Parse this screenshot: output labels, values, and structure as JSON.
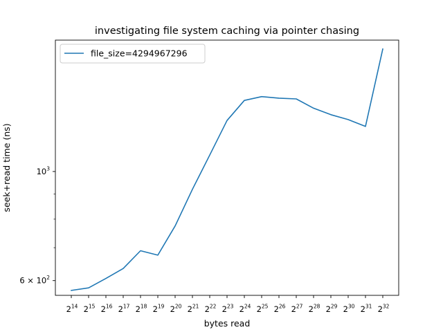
{
  "chart_data": {
    "type": "line",
    "title": "investigating file system caching via pointer chasing",
    "xlabel": "bytes read",
    "ylabel": "seek+read time (ns)",
    "x_scale": "log2",
    "y_scale": "log10",
    "x_ticks": [
      {
        "base": "2",
        "exp": "14"
      },
      {
        "base": "2",
        "exp": "15"
      },
      {
        "base": "2",
        "exp": "16"
      },
      {
        "base": "2",
        "exp": "17"
      },
      {
        "base": "2",
        "exp": "18"
      },
      {
        "base": "2",
        "exp": "19"
      },
      {
        "base": "2",
        "exp": "20"
      },
      {
        "base": "2",
        "exp": "21"
      },
      {
        "base": "2",
        "exp": "22"
      },
      {
        "base": "2",
        "exp": "23"
      },
      {
        "base": "2",
        "exp": "24"
      },
      {
        "base": "2",
        "exp": "25"
      },
      {
        "base": "2",
        "exp": "26"
      },
      {
        "base": "2",
        "exp": "27"
      },
      {
        "base": "2",
        "exp": "28"
      },
      {
        "base": "2",
        "exp": "29"
      },
      {
        "base": "2",
        "exp": "30"
      },
      {
        "base": "2",
        "exp": "31"
      },
      {
        "base": "2",
        "exp": "32"
      }
    ],
    "y_tick_labels": [
      {
        "value": 1000,
        "mantissa": "",
        "base": "10",
        "exp": "3"
      },
      {
        "value": 600,
        "mantissa": "6 × ",
        "base": "10",
        "exp": "2"
      }
    ],
    "y_minor_ticks": [
      700,
      800,
      900
    ],
    "xlim": [
      16384,
      4294967296
    ],
    "ylim": [
      560,
      1850
    ],
    "grid": false,
    "legend_position": "top-left",
    "series": [
      {
        "name": "file_size=4294967296",
        "color": "#1f77b4",
        "x": [
          16384,
          32768,
          65536,
          131072,
          262144,
          524288,
          1048576,
          2097152,
          4194304,
          8388608,
          16777216,
          33554432,
          67108864,
          134217728,
          268435456,
          536870912,
          1073741824,
          2147483648,
          4294967296
        ],
        "y": [
          573,
          580,
          606,
          635,
          690,
          676,
          775,
          920,
          1080,
          1270,
          1395,
          1420,
          1410,
          1405,
          1345,
          1305,
          1275,
          1235,
          1775
        ]
      }
    ]
  }
}
